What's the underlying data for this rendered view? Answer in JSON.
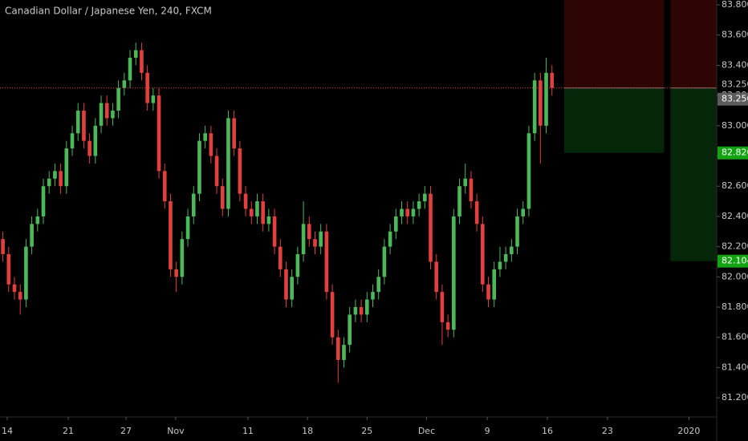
{
  "chart_data": {
    "type": "candlestick",
    "title": "Canadian Dollar / Japanese Yen, 240, FXCM",
    "up_color": "#4cb85a",
    "down_color": "#e2403f",
    "xlim": [
      -0.5,
      123.5
    ],
    "xticks": [
      {
        "value": 0.75,
        "label": "14"
      },
      {
        "value": 11.3,
        "label": "21"
      },
      {
        "value": 21.3,
        "label": "27"
      },
      {
        "value": 29.9,
        "label": "Nov"
      },
      {
        "value": 42.4,
        "label": "11"
      },
      {
        "value": 52.7,
        "label": "18"
      },
      {
        "value": 63,
        "label": "25"
      },
      {
        "value": 73.3,
        "label": "Dec"
      },
      {
        "value": 83.8,
        "label": "9"
      },
      {
        "value": 94.2,
        "label": "16"
      },
      {
        "value": 104.6,
        "label": "23"
      },
      {
        "value": 118.7,
        "label": "2020"
      }
    ],
    "ylim": [
      81.073,
      83.832
    ],
    "yticks": [
      {
        "value": 81.2,
        "label": "81.200"
      },
      {
        "value": 81.4,
        "label": "81.400"
      },
      {
        "value": 81.6,
        "label": "81.600"
      },
      {
        "value": 81.8,
        "label": "81.800"
      },
      {
        "value": 82.0,
        "label": "82.000"
      },
      {
        "value": 82.2,
        "label": "82.200"
      },
      {
        "value": 82.4,
        "label": "82.400"
      },
      {
        "value": 82.6,
        "label": "82.600"
      },
      {
        "value": 82.8,
        "label": "82.800"
      },
      {
        "value": 83.0,
        "label": "83.000"
      },
      {
        "value": 83.2,
        "label": "83.200"
      },
      {
        "value": 83.4,
        "label": "83.400"
      },
      {
        "value": 83.6,
        "label": "83.600"
      },
      {
        "value": 83.8,
        "label": "83.800"
      }
    ],
    "open": [
      82.25,
      82.15,
      81.95,
      81.9,
      81.85,
      82.2,
      82.35,
      82.4,
      82.6,
      82.65,
      82.7,
      82.6,
      82.85,
      82.95,
      83.1,
      82.9,
      82.8,
      83.0,
      83.15,
      83.05,
      83.1,
      83.25,
      83.3,
      83.45,
      83.5,
      83.35,
      83.15,
      83.2,
      82.7,
      82.5,
      82.05,
      82.0,
      82.25,
      82.4,
      82.55,
      82.9,
      82.95,
      82.8,
      82.6,
      82.45,
      83.05,
      82.85,
      82.55,
      82.45,
      82.4,
      82.5,
      82.35,
      82.4,
      82.2,
      82.05,
      81.85,
      82.0,
      82.15,
      82.35,
      82.25,
      82.2,
      82.3,
      81.9,
      81.6,
      81.45,
      81.55,
      81.75,
      81.8,
      81.75,
      81.85,
      81.9,
      82.0,
      82.2,
      82.3,
      82.4,
      82.45,
      82.4,
      82.45,
      82.5,
      82.55,
      82.1,
      81.9,
      81.7,
      81.65,
      82.4,
      82.6,
      82.65,
      82.5,
      82.35,
      81.95,
      81.85,
      82.05,
      82.1,
      82.15,
      82.2,
      82.4,
      82.45,
      82.95,
      83.3,
      83.0,
      83.35
    ],
    "high": [
      82.3,
      82.2,
      82.0,
      81.95,
      82.25,
      82.4,
      82.45,
      82.65,
      82.7,
      82.75,
      82.75,
      82.9,
      83.0,
      83.15,
      83.15,
      82.95,
      83.05,
      83.2,
      83.2,
      83.15,
      83.3,
      83.35,
      83.5,
      83.55,
      83.55,
      83.4,
      83.25,
      83.25,
      82.75,
      82.55,
      82.1,
      82.3,
      82.45,
      82.6,
      82.95,
      83.0,
      83.0,
      82.85,
      82.65,
      83.1,
      83.1,
      82.9,
      82.6,
      82.5,
      82.55,
      82.55,
      82.45,
      82.45,
      82.25,
      82.1,
      82.05,
      82.2,
      82.5,
      82.4,
      82.3,
      82.35,
      82.35,
      81.95,
      81.65,
      81.6,
      81.8,
      81.85,
      81.85,
      81.9,
      81.95,
      82.05,
      82.25,
      82.35,
      82.45,
      82.5,
      82.5,
      82.5,
      82.55,
      82.6,
      82.6,
      82.15,
      81.95,
      81.75,
      82.45,
      82.65,
      82.75,
      82.7,
      82.55,
      82.4,
      82.0,
      82.1,
      82.2,
      82.2,
      82.25,
      82.45,
      82.5,
      83.0,
      83.35,
      83.35,
      83.45,
      83.4
    ],
    "low": [
      82.1,
      81.9,
      81.85,
      81.75,
      81.8,
      82.15,
      82.3,
      82.35,
      82.55,
      82.6,
      82.55,
      82.55,
      82.8,
      82.9,
      82.85,
      82.75,
      82.75,
      82.95,
      83.0,
      83.0,
      83.05,
      83.2,
      83.25,
      83.4,
      83.3,
      83.1,
      83.1,
      82.65,
      82.45,
      82.0,
      81.9,
      81.95,
      82.2,
      82.35,
      82.5,
      82.85,
      82.75,
      82.55,
      82.4,
      82.4,
      82.8,
      82.5,
      82.4,
      82.35,
      82.35,
      82.3,
      82.3,
      82.15,
      82.0,
      81.8,
      81.8,
      81.95,
      82.1,
      82.2,
      82.15,
      82.15,
      81.85,
      81.55,
      81.3,
      81.4,
      81.5,
      81.7,
      81.7,
      81.7,
      81.8,
      81.85,
      81.95,
      82.15,
      82.25,
      82.35,
      82.35,
      82.35,
      82.4,
      82.45,
      82.05,
      81.85,
      81.55,
      81.6,
      81.6,
      82.35,
      82.55,
      82.45,
      82.3,
      81.9,
      81.8,
      81.8,
      82.0,
      82.05,
      82.1,
      82.15,
      82.35,
      82.4,
      82.9,
      82.75,
      82.95,
      83.2
    ],
    "close": [
      82.15,
      81.95,
      81.9,
      81.85,
      82.2,
      82.35,
      82.4,
      82.6,
      82.65,
      82.7,
      82.6,
      82.85,
      82.95,
      83.1,
      82.9,
      82.8,
      83.0,
      83.15,
      83.05,
      83.1,
      83.25,
      83.3,
      83.45,
      83.5,
      83.35,
      83.15,
      83.2,
      82.7,
      82.5,
      82.05,
      82.0,
      82.25,
      82.4,
      82.55,
      82.9,
      82.95,
      82.8,
      82.6,
      82.45,
      83.05,
      82.85,
      82.55,
      82.45,
      82.4,
      82.5,
      82.35,
      82.4,
      82.2,
      82.05,
      81.85,
      82.0,
      82.15,
      82.35,
      82.25,
      82.2,
      82.3,
      81.9,
      81.6,
      81.45,
      81.55,
      81.75,
      81.8,
      81.75,
      81.85,
      81.9,
      82.0,
      82.2,
      82.3,
      82.4,
      82.45,
      82.4,
      82.45,
      82.5,
      82.55,
      82.1,
      81.9,
      81.7,
      81.65,
      82.4,
      82.6,
      82.65,
      82.5,
      82.35,
      81.95,
      81.85,
      82.05,
      82.1,
      82.15,
      82.2,
      82.4,
      82.45,
      82.95,
      83.3,
      83.0,
      83.35,
      83.25
    ],
    "last_price": {
      "value": 83.25,
      "label": "83.250",
      "color": "#e2403f"
    },
    "price_labels": [
      {
        "value": 83.25,
        "label": "83.250",
        "color": "#5d5d5d"
      },
      {
        "value": 82.82,
        "label": "82.820",
        "color": "#13a313"
      },
      {
        "value": 82.104,
        "label": "82.104",
        "color": "#13a313"
      }
    ],
    "positions": [
      {
        "x_start": 97.1,
        "x_end": 114.4,
        "entry": 83.25,
        "stop": 83.85,
        "target": 82.82,
        "stop_color": "#2e0505",
        "target_color": "#06260a"
      },
      {
        "x_start": 115.5,
        "x_end": 123.5,
        "entry": 83.25,
        "stop": 83.85,
        "target": 82.104,
        "stop_color": "#2e0505",
        "target_color": "#06260a"
      }
    ]
  }
}
